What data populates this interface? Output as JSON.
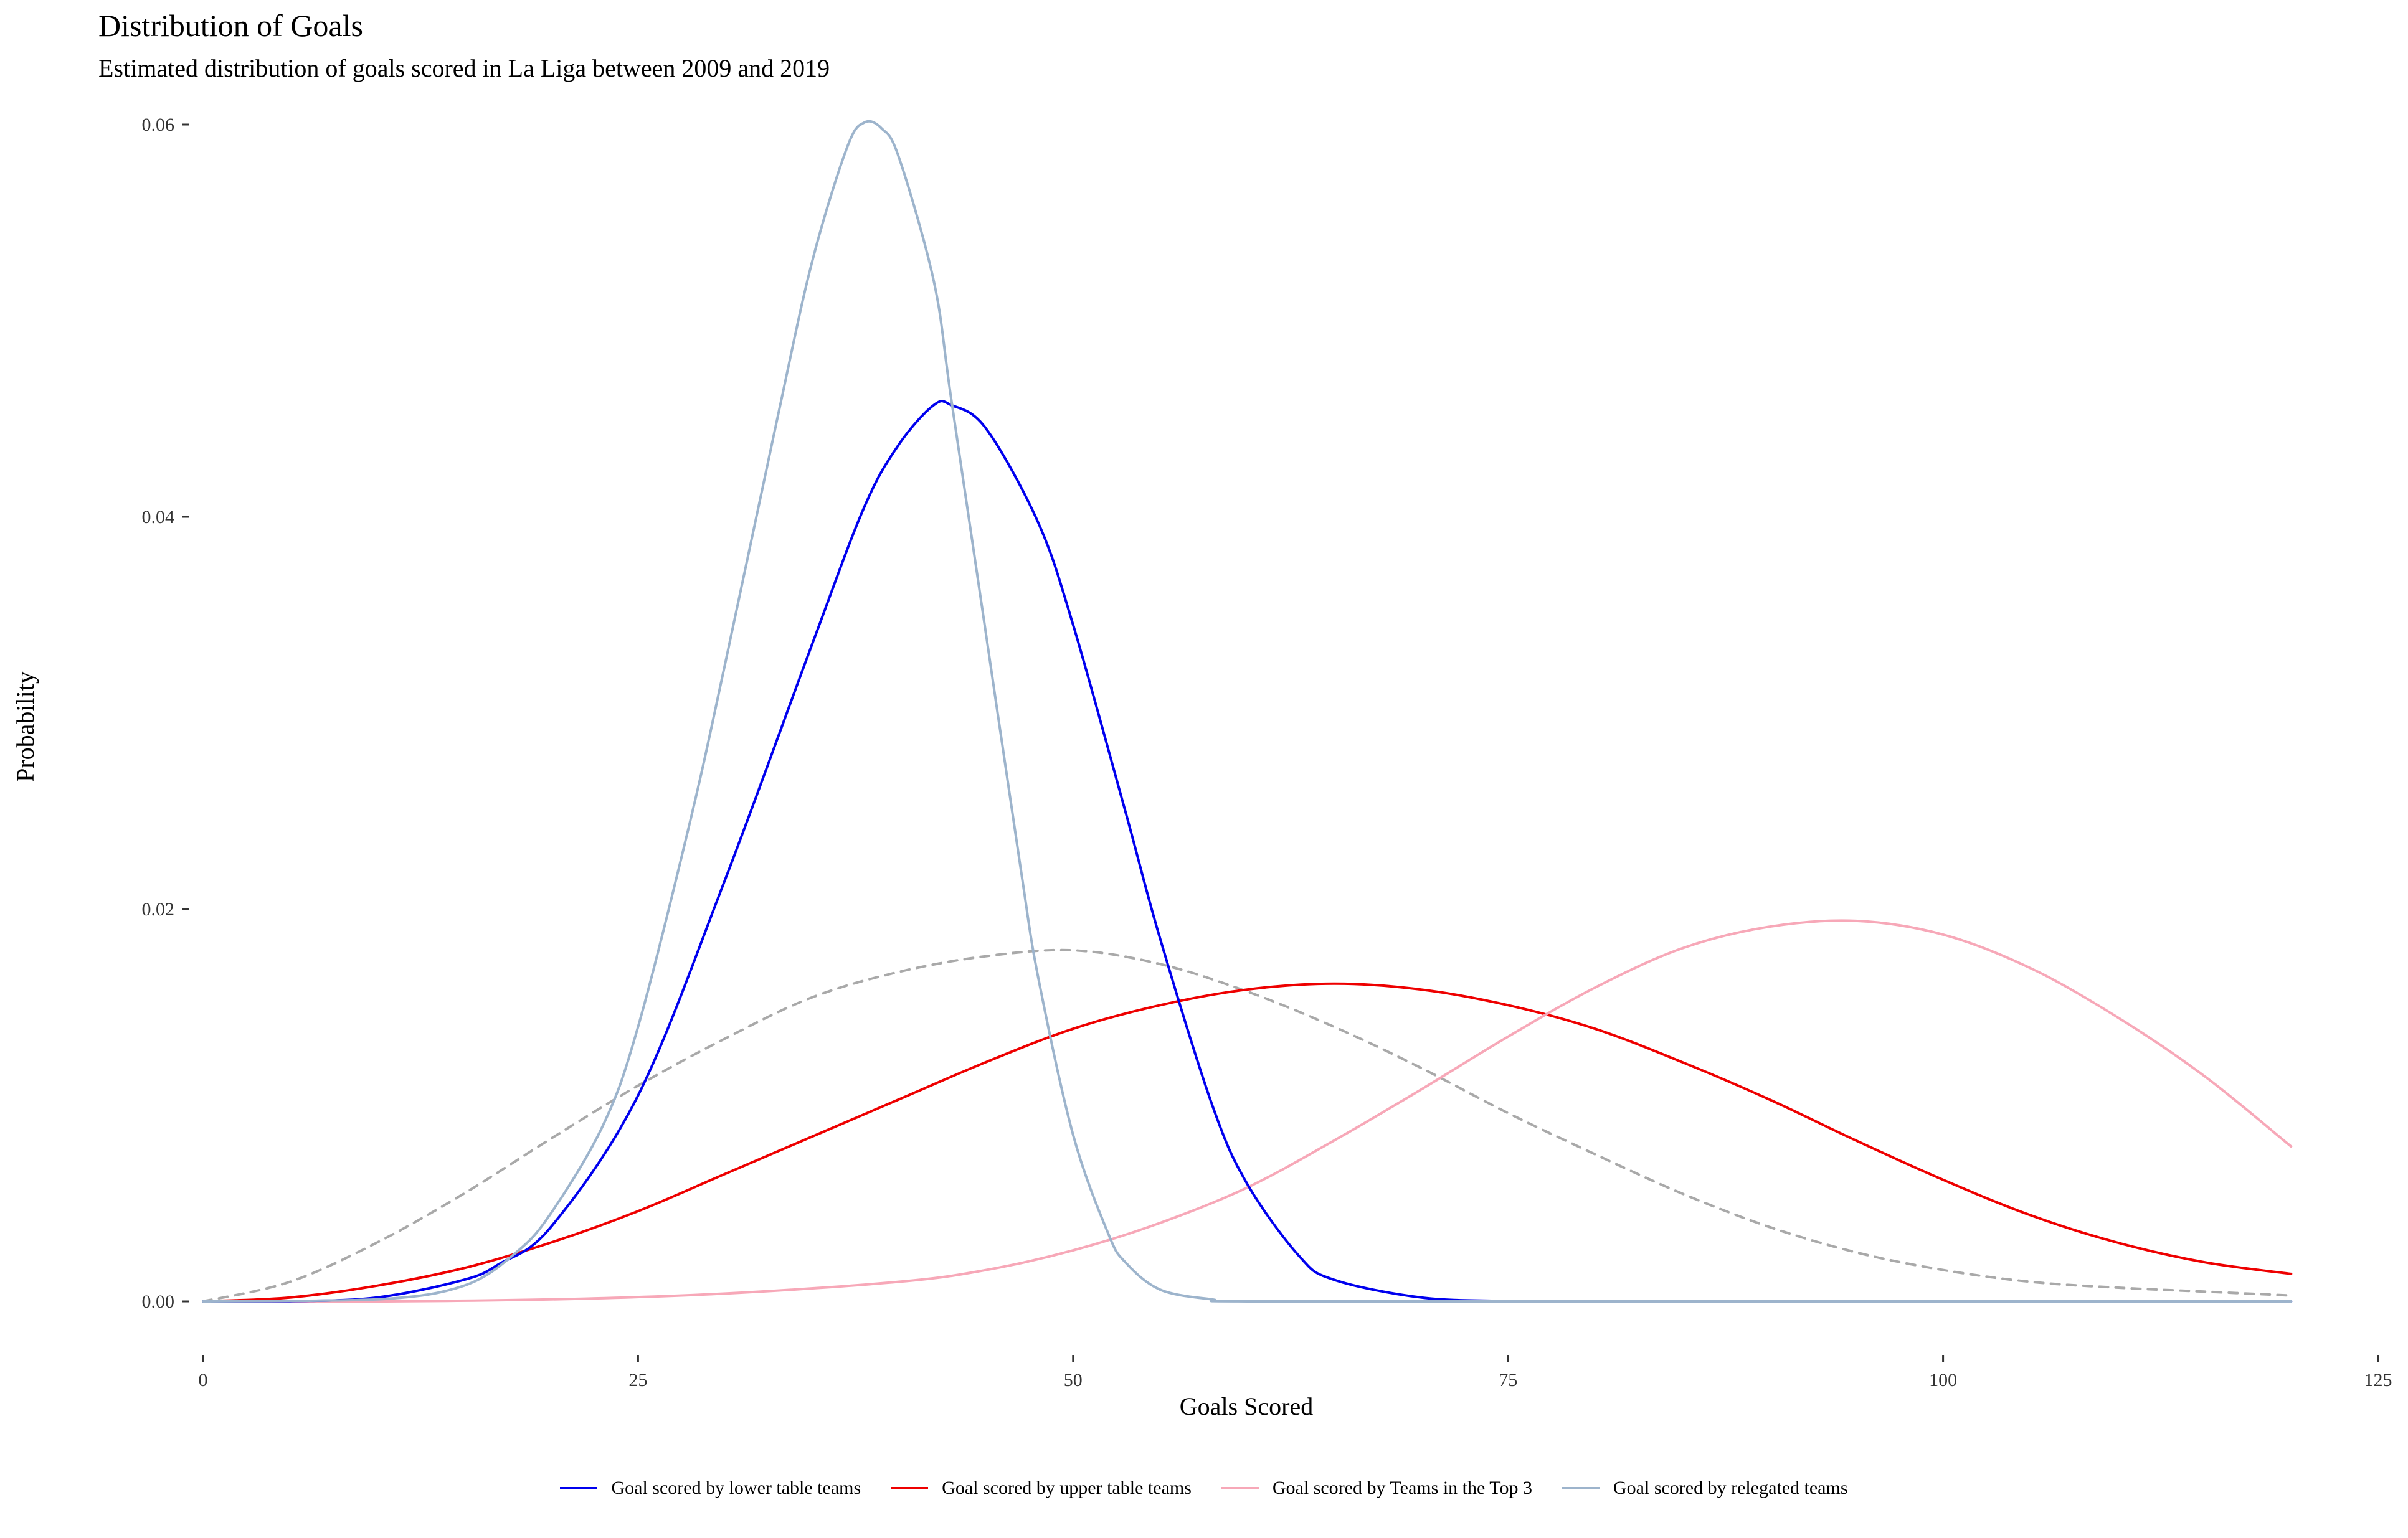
{
  "header": {
    "title": "Distribution of Goals",
    "subtitle": "Estimated distribution of goals scored in La Liga between 2009 and 2019"
  },
  "chart_data": {
    "type": "line",
    "title": "Distribution of Goals",
    "subtitle": "Estimated distribution of goals scored in La Liga between 2009 and 2019",
    "xlabel": "Goals Scored",
    "ylabel": "Probability",
    "xlim": [
      0,
      125
    ],
    "ylim": [
      0,
      0.06
    ],
    "xticks": [
      0,
      25,
      50,
      75,
      100,
      125
    ],
    "xtick_labels": [
      "0",
      "25",
      "50",
      "75",
      "100",
      "125"
    ],
    "yticks": [
      0,
      0.02,
      0.04,
      0.06
    ],
    "ytick_labels": [
      "0.00",
      "0.02",
      "0.04",
      "0.06"
    ],
    "grid": false,
    "legend_position": "bottom",
    "x_range": [
      0,
      120
    ],
    "series": [
      {
        "name": "Goal scored by lower table teams",
        "color": "#0000EE",
        "dash": "solid",
        "points": [
          [
            0,
            0
          ],
          [
            5,
            1e-05
          ],
          [
            10,
            0.0002
          ],
          [
            15,
            0.0011
          ],
          [
            17,
            0.0019
          ],
          [
            20,
            0.0038
          ],
          [
            25,
            0.0105
          ],
          [
            30,
            0.0215
          ],
          [
            35,
            0.0335
          ],
          [
            38,
            0.0405
          ],
          [
            40,
            0.0437
          ],
          [
            42,
            0.0457
          ],
          [
            43,
            0.0457
          ],
          [
            45,
            0.0445
          ],
          [
            48,
            0.0397
          ],
          [
            50,
            0.0345
          ],
          [
            53,
            0.025
          ],
          [
            55,
            0.0185
          ],
          [
            58,
            0.01
          ],
          [
            60,
            0.006
          ],
          [
            63,
            0.0023
          ],
          [
            65,
            0.0011
          ],
          [
            70,
            0.0002
          ],
          [
            75,
            2e-05
          ],
          [
            80,
            0
          ],
          [
            100,
            0
          ],
          [
            120,
            0
          ]
        ]
      },
      {
        "name": "Goal scored by upper table teams",
        "color": "#EE0000",
        "dash": "solid",
        "points": [
          [
            0,
            0
          ],
          [
            5,
            0.0002
          ],
          [
            10,
            0.0008
          ],
          [
            15,
            0.0017
          ],
          [
            20,
            0.003
          ],
          [
            25,
            0.0046
          ],
          [
            30,
            0.0065
          ],
          [
            35,
            0.0084
          ],
          [
            40,
            0.0103
          ],
          [
            45,
            0.0122
          ],
          [
            50,
            0.0139
          ],
          [
            55,
            0.0151
          ],
          [
            60,
            0.0159
          ],
          [
            65,
            0.0162
          ],
          [
            70,
            0.0159
          ],
          [
            75,
            0.0151
          ],
          [
            80,
            0.0139
          ],
          [
            85,
            0.0122
          ],
          [
            90,
            0.0103
          ],
          [
            95,
            0.0082
          ],
          [
            100,
            0.0062
          ],
          [
            105,
            0.0044
          ],
          [
            110,
            0.003
          ],
          [
            115,
            0.002
          ],
          [
            120,
            0.0014
          ]
        ]
      },
      {
        "name": "Goal scored by Teams in the Top 3",
        "color": "#F7A8B8",
        "dash": "solid",
        "points": [
          [
            0,
            0
          ],
          [
            10,
            0
          ],
          [
            20,
            0.0001
          ],
          [
            30,
            0.0004
          ],
          [
            40,
            0.001
          ],
          [
            45,
            0.0016
          ],
          [
            50,
            0.0026
          ],
          [
            55,
            0.004
          ],
          [
            60,
            0.0058
          ],
          [
            65,
            0.0082
          ],
          [
            70,
            0.0108
          ],
          [
            75,
            0.0135
          ],
          [
            80,
            0.016
          ],
          [
            85,
            0.018
          ],
          [
            90,
            0.0191
          ],
          [
            95,
            0.0194
          ],
          [
            100,
            0.0187
          ],
          [
            105,
            0.017
          ],
          [
            110,
            0.0145
          ],
          [
            115,
            0.0115
          ],
          [
            120,
            0.0079
          ]
        ]
      },
      {
        "name": "Goal scored by relegated teams",
        "color": "#9DB4CC",
        "dash": "solid",
        "points": [
          [
            0,
            0
          ],
          [
            10,
            0.0001
          ],
          [
            15,
            0.0008
          ],
          [
            18,
            0.0025
          ],
          [
            20,
            0.0045
          ],
          [
            23,
            0.009
          ],
          [
            25,
            0.014
          ],
          [
            28,
            0.0245
          ],
          [
            30,
            0.0325
          ],
          [
            33,
            0.045
          ],
          [
            35,
            0.053
          ],
          [
            37,
            0.0588
          ],
          [
            38,
            0.0601
          ],
          [
            39,
            0.0598
          ],
          [
            40,
            0.0583
          ],
          [
            42,
            0.052
          ],
          [
            43,
            0.046
          ],
          [
            45,
            0.034
          ],
          [
            47,
            0.022
          ],
          [
            48,
            0.0165
          ],
          [
            50,
            0.0085
          ],
          [
            52,
            0.0035
          ],
          [
            53,
            0.002
          ],
          [
            55,
            0.0006
          ],
          [
            58,
            0.0001
          ],
          [
            60,
            0
          ],
          [
            80,
            0
          ],
          [
            100,
            0
          ],
          [
            120,
            0
          ]
        ]
      },
      {
        "name": "",
        "color": "#A9A9A9",
        "dash": "dashed",
        "points": [
          [
            0,
            0
          ],
          [
            5,
            0.001
          ],
          [
            10,
            0.003
          ],
          [
            15,
            0.0055
          ],
          [
            20,
            0.0083
          ],
          [
            25,
            0.011
          ],
          [
            30,
            0.0134
          ],
          [
            35,
            0.0155
          ],
          [
            40,
            0.0168
          ],
          [
            45,
            0.0176
          ],
          [
            50,
            0.0179
          ],
          [
            55,
            0.0172
          ],
          [
            60,
            0.0158
          ],
          [
            65,
            0.014
          ],
          [
            70,
            0.0119
          ],
          [
            75,
            0.0096
          ],
          [
            80,
            0.0075
          ],
          [
            85,
            0.0055
          ],
          [
            90,
            0.0038
          ],
          [
            95,
            0.0025
          ],
          [
            100,
            0.0016
          ],
          [
            105,
            0.001
          ],
          [
            110,
            0.0007
          ],
          [
            115,
            0.0005
          ],
          [
            120,
            0.0003
          ]
        ]
      }
    ]
  }
}
